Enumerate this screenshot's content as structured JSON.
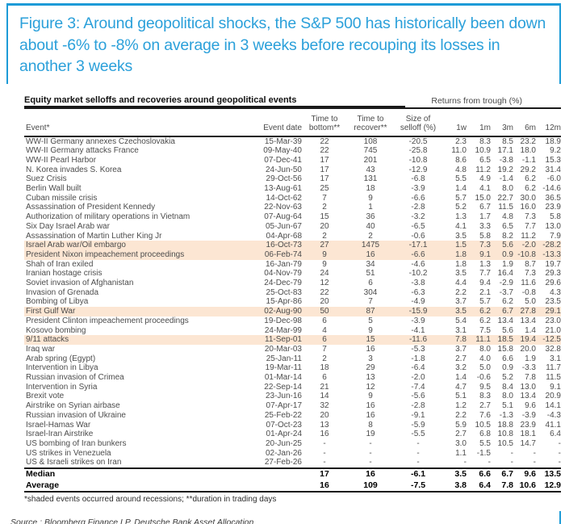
{
  "figure": {
    "title": "Figure 3: Around geopolitical shocks, the S&P 500 has historically been down about -6% to -8% on average in 3 weeks before recouping its losses in another 3 weeks",
    "accent_blue": "#1d9bd7",
    "shaded_row_color": "#fce6d3"
  },
  "table": {
    "title": "Equity market selloffs and recoveries around geopolitical events",
    "returns_header": "Returns from trough (%)",
    "columns": [
      "Event*",
      "Event date",
      "Time to\nbottom**",
      "Time to\nrecover**",
      "Size of\nselloff (%)",
      "1w",
      "1m",
      "3m",
      "6m",
      "12m"
    ],
    "rows": [
      {
        "shaded": false,
        "cells": [
          "WW-II Germany annexes Czechoslovakia",
          "15-Mar-39",
          "22",
          "108",
          "-20.5",
          "2.3",
          "8.3",
          "8.5",
          "23.2",
          "18.9"
        ]
      },
      {
        "shaded": false,
        "cells": [
          "WW-II Germany attacks France",
          "09-May-40",
          "22",
          "745",
          "-25.8",
          "11.0",
          "10.9",
          "17.1",
          "18.0",
          "9.2"
        ]
      },
      {
        "shaded": false,
        "cells": [
          "WW-II Pearl Harbor",
          "07-Dec-41",
          "17",
          "201",
          "-10.8",
          "8.6",
          "6.5",
          "-3.8",
          "-1.1",
          "15.3"
        ]
      },
      {
        "shaded": false,
        "cells": [
          "N. Korea invades S. Korea",
          "24-Jun-50",
          "17",
          "43",
          "-12.9",
          "4.8",
          "11.2",
          "19.2",
          "29.2",
          "31.4"
        ]
      },
      {
        "shaded": false,
        "cells": [
          "Suez Crisis",
          "29-Oct-56",
          "17",
          "131",
          "-6.8",
          "5.5",
          "4.9",
          "-1.4",
          "6.2",
          "-6.0"
        ]
      },
      {
        "shaded": false,
        "cells": [
          "Berlin Wall built",
          "13-Aug-61",
          "25",
          "18",
          "-3.9",
          "1.4",
          "4.1",
          "8.0",
          "6.2",
          "-14.6"
        ]
      },
      {
        "shaded": false,
        "cells": [
          "Cuban missile crisis",
          "14-Oct-62",
          "7",
          "9",
          "-6.6",
          "5.7",
          "15.0",
          "22.7",
          "30.0",
          "36.5"
        ]
      },
      {
        "shaded": false,
        "cells": [
          "Assassination of President Kennedy",
          "22-Nov-63",
          "2",
          "1",
          "-2.8",
          "5.2",
          "6.7",
          "11.5",
          "16.0",
          "23.9"
        ]
      },
      {
        "shaded": false,
        "cells": [
          "Authorization of military operations in Vietnam",
          "07-Aug-64",
          "15",
          "36",
          "-3.2",
          "1.3",
          "1.7",
          "4.8",
          "7.3",
          "5.8"
        ]
      },
      {
        "shaded": false,
        "cells": [
          "Six Day Israel Arab war",
          "05-Jun-67",
          "20",
          "40",
          "-6.5",
          "4.1",
          "3.3",
          "6.5",
          "7.7",
          "13.0"
        ]
      },
      {
        "shaded": false,
        "cells": [
          "Assassination of Martin Luther King Jr",
          "04-Apr-68",
          "2",
          "2",
          "-0.6",
          "3.5",
          "5.8",
          "8.2",
          "11.2",
          "7.9"
        ]
      },
      {
        "shaded": true,
        "cells": [
          "Israel Arab war/Oil embargo",
          "16-Oct-73",
          "27",
          "1475",
          "-17.1",
          "1.5",
          "7.3",
          "5.6",
          "-2.0",
          "-28.2"
        ]
      },
      {
        "shaded": true,
        "cells": [
          "President Nixon impeachement proceedings",
          "06-Feb-74",
          "9",
          "16",
          "-6.6",
          "1.8",
          "9.1",
          "0.9",
          "-10.8",
          "-13.3"
        ]
      },
      {
        "shaded": false,
        "cells": [
          "Shah of Iran exiled",
          "16-Jan-79",
          "9",
          "34",
          "-4.6",
          "1.8",
          "1.3",
          "1.9",
          "8.7",
          "19.7"
        ]
      },
      {
        "shaded": false,
        "cells": [
          "Iranian hostage crisis",
          "04-Nov-79",
          "24",
          "51",
          "-10.2",
          "3.5",
          "7.7",
          "16.4",
          "7.3",
          "29.3"
        ]
      },
      {
        "shaded": false,
        "cells": [
          "Soviet invasion of Afghanistan",
          "24-Dec-79",
          "12",
          "6",
          "-3.8",
          "4.4",
          "9.4",
          "-2.9",
          "11.6",
          "29.6"
        ]
      },
      {
        "shaded": false,
        "cells": [
          "Invasion of Grenada",
          "25-Oct-83",
          "22",
          "304",
          "-6.3",
          "2.2",
          "2.1",
          "-3.7",
          "-0.8",
          "4.3"
        ]
      },
      {
        "shaded": false,
        "cells": [
          "Bombing of Libya",
          "15-Apr-86",
          "20",
          "7",
          "-4.9",
          "3.7",
          "5.7",
          "6.2",
          "5.0",
          "23.5"
        ]
      },
      {
        "shaded": true,
        "cells": [
          "First Gulf War",
          "02-Aug-90",
          "50",
          "87",
          "-15.9",
          "3.5",
          "6.2",
          "6.7",
          "27.8",
          "29.1"
        ]
      },
      {
        "shaded": false,
        "cells": [
          "President Clinton impeachement proceedings",
          "19-Dec-98",
          "6",
          "5",
          "-3.9",
          "5.4",
          "6.2",
          "13.4",
          "13.4",
          "23.0"
        ]
      },
      {
        "shaded": false,
        "cells": [
          "Kosovo bombing",
          "24-Mar-99",
          "4",
          "9",
          "-4.1",
          "3.1",
          "7.5",
          "5.6",
          "1.4",
          "21.0"
        ]
      },
      {
        "shaded": true,
        "cells": [
          "9/11 attacks",
          "11-Sep-01",
          "6",
          "15",
          "-11.6",
          "7.8",
          "11.1",
          "18.5",
          "19.4",
          "-12.5"
        ]
      },
      {
        "shaded": false,
        "cells": [
          "Iraq war",
          "20-Mar-03",
          "7",
          "16",
          "-5.3",
          "3.7",
          "8.0",
          "15.8",
          "20.0",
          "32.8"
        ]
      },
      {
        "shaded": false,
        "cells": [
          "Arab spring (Egypt)",
          "25-Jan-11",
          "2",
          "3",
          "-1.8",
          "2.7",
          "4.0",
          "6.6",
          "1.9",
          "3.1"
        ]
      },
      {
        "shaded": false,
        "cells": [
          "Intervention in Libya",
          "19-Mar-11",
          "18",
          "29",
          "-6.4",
          "3.2",
          "5.0",
          "0.9",
          "-3.3",
          "11.7"
        ]
      },
      {
        "shaded": false,
        "cells": [
          "Russian invasion of Crimea",
          "01-Mar-14",
          "6",
          "13",
          "-2.0",
          "1.4",
          "-0.6",
          "5.2",
          "7.8",
          "11.5"
        ]
      },
      {
        "shaded": false,
        "cells": [
          "Intervention in Syria",
          "22-Sep-14",
          "21",
          "12",
          "-7.4",
          "4.7",
          "9.5",
          "8.4",
          "13.0",
          "9.1"
        ]
      },
      {
        "shaded": false,
        "cells": [
          "Brexit vote",
          "23-Jun-16",
          "14",
          "9",
          "-5.6",
          "5.1",
          "8.3",
          "8.0",
          "13.4",
          "20.9"
        ]
      },
      {
        "shaded": false,
        "cells": [
          "Airstrike on Syrian airbase",
          "07-Apr-17",
          "32",
          "16",
          "-2.8",
          "1.2",
          "2.7",
          "5.1",
          "9.6",
          "14.1"
        ]
      },
      {
        "shaded": false,
        "cells": [
          "Russian invasion of Ukraine",
          "25-Feb-22",
          "20",
          "16",
          "-9.1",
          "2.2",
          "7.6",
          "-1.3",
          "-3.9",
          "-4.3"
        ]
      },
      {
        "shaded": false,
        "cells": [
          "Israel-Hamas War",
          "07-Oct-23",
          "13",
          "8",
          "-5.9",
          "5.9",
          "10.5",
          "18.8",
          "23.9",
          "41.1"
        ]
      },
      {
        "shaded": false,
        "cells": [
          "Israel-Iran Airstrike",
          "01-Apr-24",
          "16",
          "19",
          "-5.5",
          "2.7",
          "6.8",
          "10.8",
          "18.1",
          "6.4"
        ]
      },
      {
        "shaded": false,
        "cells": [
          "US bombing of Iran bunkers",
          "20-Jun-25",
          "-",
          "-",
          "-",
          "3.0",
          "5.5",
          "10.5",
          "14.7",
          "-"
        ]
      },
      {
        "shaded": false,
        "cells": [
          "US strikes in Venezuela",
          "02-Jan-26",
          "-",
          "-",
          "-",
          "1.1",
          "-1.5",
          "-",
          "-",
          "-"
        ]
      },
      {
        "shaded": false,
        "cells": [
          "US & Israeli strikes on Iran",
          "27-Feb-26",
          "-",
          "-",
          "-",
          "-",
          "-",
          "-",
          "-",
          "-"
        ]
      }
    ],
    "summary_rows": [
      {
        "cells": [
          "Median",
          "",
          "17",
          "16",
          "-6.1",
          "3.5",
          "6.6",
          "6.7",
          "9.6",
          "13.5"
        ]
      },
      {
        "cells": [
          "Average",
          "",
          "16",
          "109",
          "-7.5",
          "3.8",
          "6.4",
          "7.8",
          "10.6",
          "12.9"
        ]
      }
    ],
    "footnote": "*shaded events occurred around recessions; **duration in trading days",
    "source": "Source : Bloomberg Finance LP, Deutsche Bank Asset Allocation"
  }
}
